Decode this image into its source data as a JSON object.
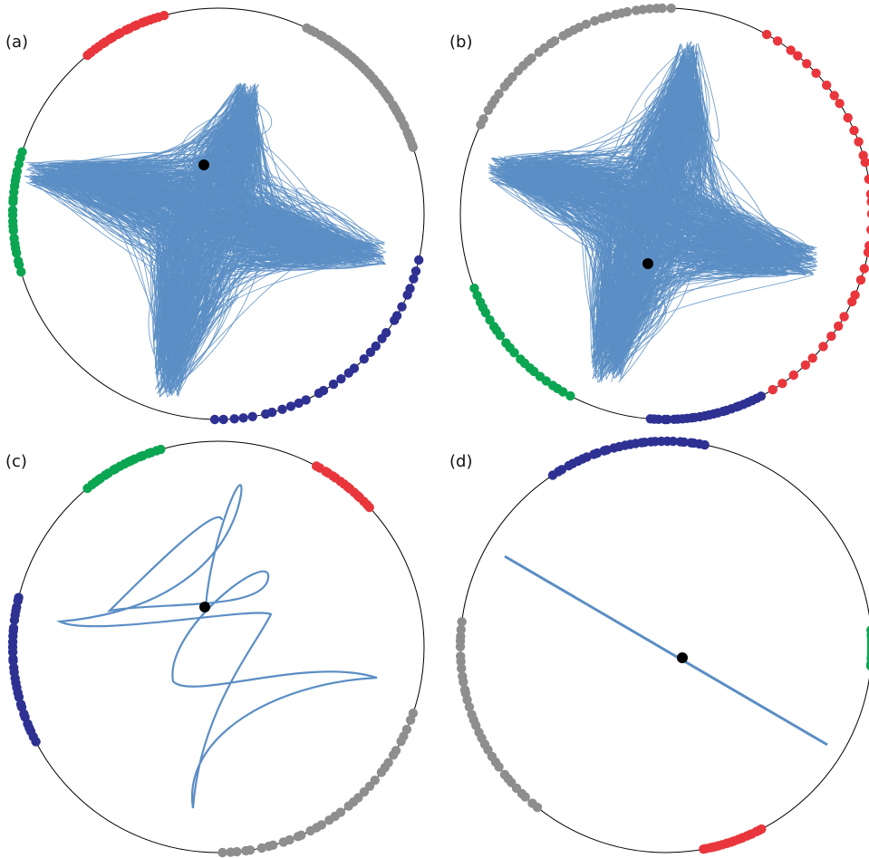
{
  "figure": {
    "panels": [
      {
        "label": "(a)",
        "trajectory": "dense",
        "groups": [
          {
            "color": "red",
            "start_deg": 230,
            "end_deg": 255,
            "dots": 20
          },
          {
            "color": "gray",
            "start_deg": 295,
            "end_deg": 342,
            "dots": 38
          },
          {
            "color": "navy",
            "start_deg": 12,
            "end_deg": 92,
            "dots": 30
          },
          {
            "color": "green",
            "start_deg": 163,
            "end_deg": 198,
            "dots": 22
          }
        ]
      },
      {
        "label": "(b)",
        "trajectory": "dense",
        "groups": [
          {
            "color": "gray",
            "start_deg": 205,
            "end_deg": 272,
            "dots": 34
          },
          {
            "color": "red",
            "start_deg": 298,
            "end_deg": 60,
            "dots": 34
          },
          {
            "color": "navy",
            "start_deg": 62,
            "end_deg": 95,
            "dots": 26
          },
          {
            "color": "green",
            "start_deg": 117,
            "end_deg": 160,
            "dots": 22
          }
        ]
      },
      {
        "label": "(c)",
        "trajectory": "sparse",
        "groups": [
          {
            "color": "green",
            "start_deg": 230,
            "end_deg": 254,
            "dots": 20
          },
          {
            "color": "red",
            "start_deg": 298,
            "end_deg": 318,
            "dots": 16
          },
          {
            "color": "gray",
            "start_deg": 18,
            "end_deg": 90,
            "dots": 34
          },
          {
            "color": "navy",
            "start_deg": 152,
            "end_deg": 195,
            "dots": 30
          }
        ]
      },
      {
        "label": "(d)",
        "trajectory": "line",
        "groups": [
          {
            "color": "navy",
            "start_deg": 236,
            "end_deg": 282,
            "dots": 30
          },
          {
            "color": "green",
            "start_deg": 355,
            "end_deg": 6,
            "dots": 12
          },
          {
            "color": "red",
            "start_deg": 62,
            "end_deg": 80,
            "dots": 20
          },
          {
            "color": "gray",
            "start_deg": 128,
            "end_deg": 188,
            "dots": 32
          }
        ]
      }
    ],
    "colors": {
      "red": "#e8363c",
      "gray": "#8e8e8e",
      "navy": "#2e3192",
      "green": "#0ca552",
      "trajectory": "#5b8ec4",
      "circle": "#000000",
      "center": "#000000"
    }
  }
}
